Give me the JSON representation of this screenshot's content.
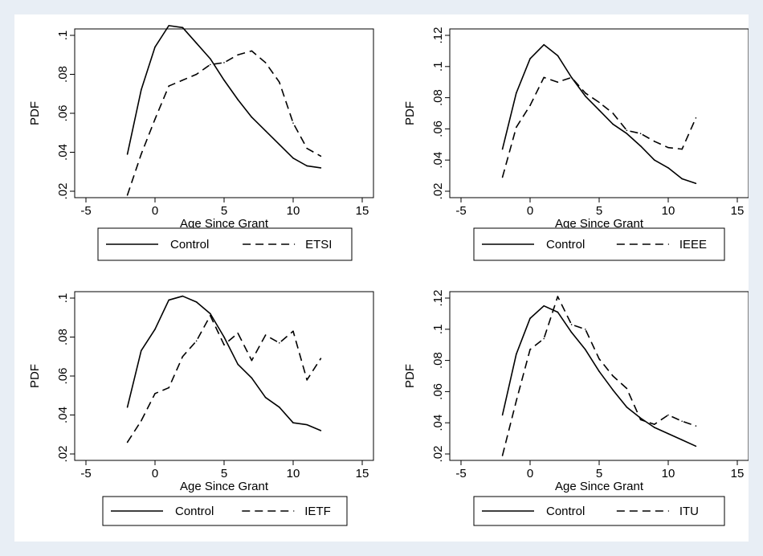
{
  "chart_data": [
    {
      "type": "line",
      "xlabel": "Age Since Grant",
      "ylabel": "PDF",
      "xlim": [
        -5,
        15
      ],
      "ylim": [
        0.02,
        0.1
      ],
      "xticks": [
        "-5",
        "0",
        "5",
        "10",
        "15"
      ],
      "yticks": [
        ".02",
        ".04",
        ".06",
        ".08",
        ".1"
      ],
      "legend_position": "bottom",
      "grid": false,
      "series": [
        {
          "name": "Control",
          "style": "solid",
          "x": [
            -2,
            -1,
            0,
            1,
            2,
            3,
            4,
            5,
            6,
            7,
            8,
            9,
            10,
            11,
            12
          ],
          "y": [
            0.039,
            0.072,
            0.094,
            0.105,
            0.104,
            0.096,
            0.088,
            0.077,
            0.067,
            0.058,
            0.051,
            0.044,
            0.037,
            0.033,
            0.032
          ]
        },
        {
          "name": "ETSI",
          "style": "dashed",
          "x": [
            -2,
            -1,
            0,
            1,
            2,
            3,
            4,
            5,
            6,
            7,
            8,
            9,
            10,
            11,
            12
          ],
          "y": [
            0.018,
            0.039,
            0.057,
            0.074,
            0.077,
            0.08,
            0.085,
            0.086,
            0.09,
            0.092,
            0.086,
            0.076,
            0.055,
            0.042,
            0.038
          ]
        }
      ]
    },
    {
      "type": "line",
      "xlabel": "Age Since Grant",
      "ylabel": "PDF",
      "xlim": [
        -5,
        15
      ],
      "ylim": [
        0.02,
        0.12
      ],
      "xticks": [
        "-5",
        "0",
        "5",
        "10",
        "15"
      ],
      "yticks": [
        ".02",
        ".04",
        ".06",
        ".08",
        ".1",
        ".12"
      ],
      "legend_position": "bottom",
      "grid": false,
      "series": [
        {
          "name": "Control",
          "style": "solid",
          "x": [
            -2,
            -1,
            0,
            1,
            2,
            3,
            4,
            5,
            6,
            7,
            8,
            9,
            10,
            11,
            12
          ],
          "y": [
            0.047,
            0.083,
            0.105,
            0.114,
            0.107,
            0.093,
            0.081,
            0.072,
            0.063,
            0.057,
            0.049,
            0.04,
            0.035,
            0.028,
            0.025
          ]
        },
        {
          "name": "IEEE",
          "style": "dashed",
          "x": [
            -2,
            -1,
            0,
            1,
            2,
            3,
            4,
            5,
            6,
            7,
            8,
            9,
            10,
            11,
            12
          ],
          "y": [
            0.029,
            0.061,
            0.075,
            0.093,
            0.09,
            0.093,
            0.083,
            0.077,
            0.07,
            0.059,
            0.057,
            0.052,
            0.048,
            0.047,
            0.067
          ]
        }
      ]
    },
    {
      "type": "line",
      "xlabel": "Age Since Grant",
      "ylabel": "PDF",
      "xlim": [
        -5,
        15
      ],
      "ylim": [
        0.02,
        0.1
      ],
      "xticks": [
        "-5",
        "0",
        "5",
        "10",
        "15"
      ],
      "yticks": [
        ".02",
        ".04",
        ".06",
        ".08",
        ".1"
      ],
      "legend_position": "bottom",
      "grid": false,
      "series": [
        {
          "name": "Control",
          "style": "solid",
          "x": [
            -2,
            -1,
            0,
            1,
            2,
            3,
            4,
            5,
            6,
            7,
            8,
            9,
            10,
            11,
            12
          ],
          "y": [
            0.044,
            0.073,
            0.084,
            0.099,
            0.101,
            0.098,
            0.092,
            0.08,
            0.066,
            0.059,
            0.049,
            0.044,
            0.036,
            0.035,
            0.032
          ]
        },
        {
          "name": "IETF",
          "style": "dashed",
          "x": [
            -2,
            -1,
            0,
            1,
            2,
            3,
            4,
            5,
            6,
            7,
            8,
            9,
            10,
            11,
            12
          ],
          "y": [
            0.026,
            0.037,
            0.051,
            0.054,
            0.07,
            0.078,
            0.091,
            0.076,
            0.082,
            0.068,
            0.081,
            0.077,
            0.083,
            0.058,
            0.069
          ]
        }
      ]
    },
    {
      "type": "line",
      "xlabel": "Age Since Grant",
      "ylabel": "PDF",
      "xlim": [
        -5,
        15
      ],
      "ylim": [
        0.02,
        0.12
      ],
      "xticks": [
        "-5",
        "0",
        "5",
        "10",
        "15"
      ],
      "yticks": [
        ".02",
        ".04",
        ".06",
        ".08",
        ".1",
        ".12"
      ],
      "legend_position": "bottom",
      "grid": false,
      "series": [
        {
          "name": "Control",
          "style": "solid",
          "x": [
            -2,
            -1,
            0,
            1,
            2,
            3,
            4,
            5,
            6,
            7,
            8,
            9,
            10,
            11,
            12
          ],
          "y": [
            0.045,
            0.084,
            0.107,
            0.115,
            0.111,
            0.098,
            0.087,
            0.073,
            0.061,
            0.05,
            0.043,
            0.037,
            0.033,
            0.029,
            0.025
          ]
        },
        {
          "name": "ITU",
          "style": "dashed",
          "x": [
            -2,
            -1,
            0,
            1,
            2,
            3,
            4,
            5,
            6,
            7,
            8,
            9,
            10,
            11,
            12
          ],
          "y": [
            0.019,
            0.054,
            0.087,
            0.094,
            0.121,
            0.103,
            0.1,
            0.081,
            0.07,
            0.062,
            0.042,
            0.039,
            0.045,
            0.041,
            0.038
          ]
        }
      ]
    }
  ],
  "colors": {
    "background": "#e8eef5",
    "plot": "#ffffff",
    "line": "#000000"
  }
}
